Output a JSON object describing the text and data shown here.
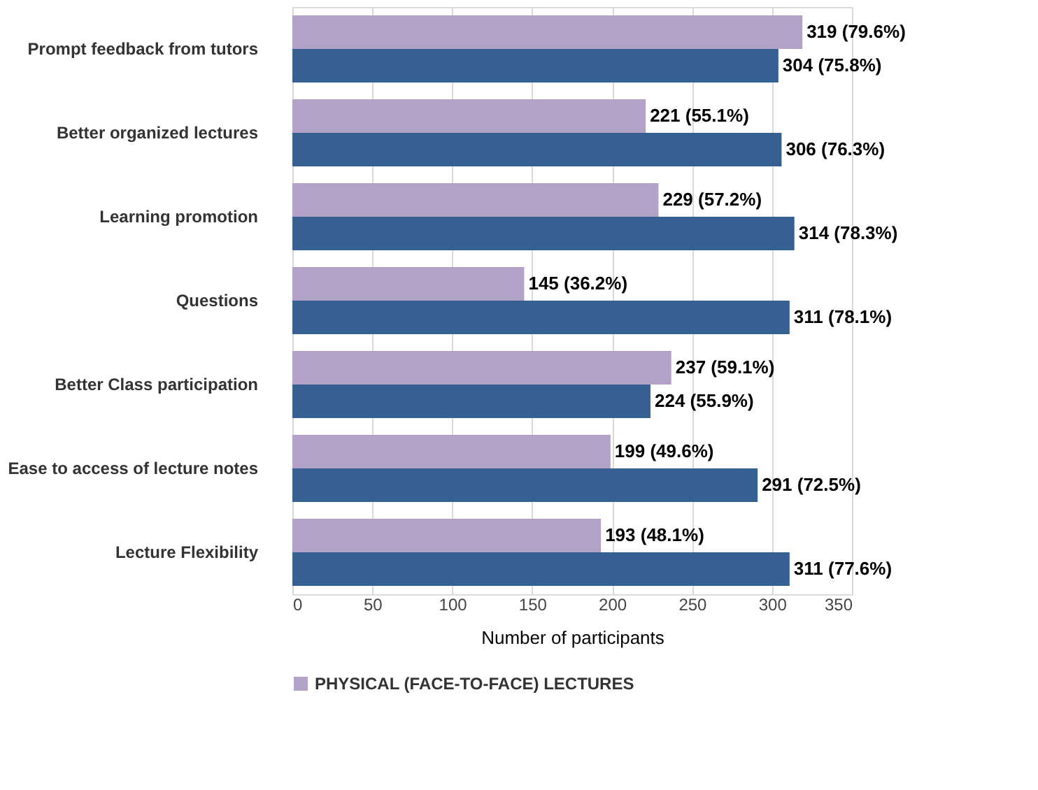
{
  "chart_data": {
    "type": "bar",
    "orientation": "horizontal",
    "xlabel": "Number of participants",
    "categories": [
      "Prompt feedback from tutors",
      "Better organized lectures",
      "Learning promotion",
      "Questions",
      "Better Class participation",
      "Ease to access of lecture notes",
      "Lecture Flexibility"
    ],
    "series": [
      {
        "name": "PHYSICAL (FACE-TO-FACE) LECTURES",
        "color": "#b3a2c7",
        "values": [
          319,
          221,
          229,
          145,
          237,
          199,
          193
        ],
        "value_labels": [
          "319 (79.6%)",
          "221 (55.1%)",
          "229 (57.2%)",
          "145 (36.2%)",
          "237 (59.1%)",
          "199 (49.6%)",
          "193 (48.1%)"
        ]
      },
      {
        "color": "#376092",
        "values": [
          304,
          306,
          314,
          311,
          224,
          291,
          311
        ],
        "value_labels": [
          "304 (75.8%)",
          "306 (76.3%)",
          "314 (78.3%)",
          "311 (78.1%)",
          "224 (55.9%)",
          "291 (72.5%)",
          "311 (77.6%)"
        ]
      }
    ],
    "xlim": [
      0,
      350
    ],
    "xticks": [
      0,
      50,
      100,
      150,
      200,
      250,
      300,
      350
    ],
    "grid": "x",
    "legend": "bottom"
  }
}
